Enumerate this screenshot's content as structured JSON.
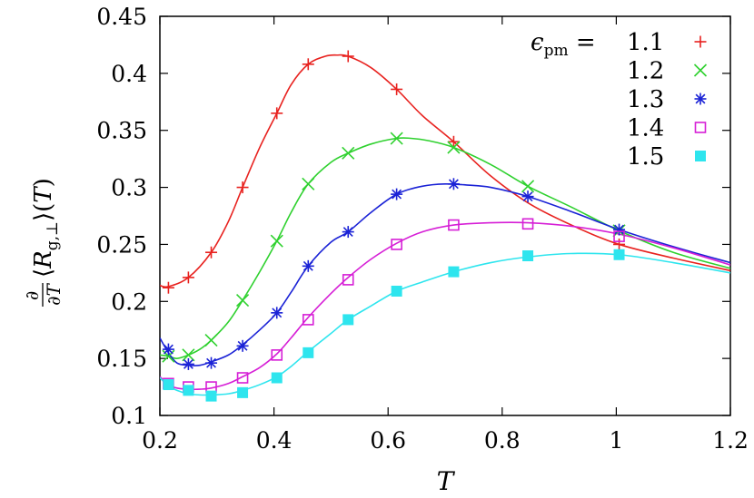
{
  "chart_data": {
    "type": "line",
    "xlabel": "T",
    "ylabel": "∂/∂T ⟨R_g,⊥⟩(T)",
    "xlim": [
      0.2,
      1.2
    ],
    "ylim": [
      0.1,
      0.45
    ],
    "xticks": [
      "0.2",
      "0.4",
      "0.6",
      "0.8",
      "1",
      "1.2"
    ],
    "yticks": [
      "0.1",
      "0.15",
      "0.2",
      "0.25",
      "0.3",
      "0.35",
      "0.4",
      "0.45"
    ],
    "grid": false,
    "legend_placement": "top-right",
    "legend_title": "ε_pm =",
    "series": [
      {
        "name": "1.1",
        "color": "#e8221f",
        "marker": "plus",
        "x": [
          0.215,
          0.25,
          0.29,
          0.345,
          0.405,
          0.46,
          0.53,
          0.615,
          0.715,
          1.005
        ],
        "y": [
          0.212,
          0.221,
          0.243,
          0.3,
          0.365,
          0.408,
          0.415,
          0.386,
          0.34,
          0.25
        ],
        "curve_x": [
          0.2,
          0.215,
          0.25,
          0.29,
          0.32,
          0.345,
          0.375,
          0.405,
          0.43,
          0.46,
          0.49,
          0.51,
          0.53,
          0.57,
          0.615,
          0.66,
          0.715,
          0.78,
          0.85,
          0.93,
          1.005,
          1.1,
          1.2
        ],
        "curve_y": [
          0.214,
          0.213,
          0.221,
          0.243,
          0.27,
          0.3,
          0.335,
          0.365,
          0.39,
          0.408,
          0.415,
          0.416,
          0.415,
          0.405,
          0.386,
          0.363,
          0.34,
          0.31,
          0.285,
          0.265,
          0.25,
          0.238,
          0.227
        ]
      },
      {
        "name": "1.2",
        "color": "#2fd12f",
        "marker": "cross",
        "x": [
          0.215,
          0.25,
          0.29,
          0.345,
          0.405,
          0.46,
          0.53,
          0.615,
          0.715,
          0.845,
          1.005
        ],
        "y": [
          0.152,
          0.153,
          0.166,
          0.201,
          0.253,
          0.303,
          0.33,
          0.343,
          0.335,
          0.301,
          0.262
        ],
        "curve_x": [
          0.2,
          0.215,
          0.23,
          0.25,
          0.27,
          0.29,
          0.32,
          0.345,
          0.375,
          0.405,
          0.43,
          0.46,
          0.5,
          0.53,
          0.57,
          0.615,
          0.64,
          0.67,
          0.715,
          0.78,
          0.845,
          0.92,
          1.005,
          1.1,
          1.2
        ],
        "curve_y": [
          0.153,
          0.152,
          0.15,
          0.153,
          0.158,
          0.166,
          0.182,
          0.201,
          0.226,
          0.253,
          0.278,
          0.303,
          0.322,
          0.33,
          0.338,
          0.343,
          0.343,
          0.341,
          0.335,
          0.32,
          0.301,
          0.283,
          0.262,
          0.243,
          0.229
        ]
      },
      {
        "name": "1.3",
        "color": "#1b23d6",
        "marker": "asterisk",
        "x": [
          0.215,
          0.25,
          0.29,
          0.345,
          0.405,
          0.46,
          0.53,
          0.615,
          0.715,
          0.845,
          1.005
        ],
        "y": [
          0.158,
          0.145,
          0.146,
          0.161,
          0.19,
          0.231,
          0.261,
          0.294,
          0.303,
          0.292,
          0.263
        ],
        "curve_x": [
          0.2,
          0.215,
          0.23,
          0.25,
          0.27,
          0.29,
          0.32,
          0.345,
          0.375,
          0.405,
          0.43,
          0.46,
          0.5,
          0.53,
          0.57,
          0.615,
          0.66,
          0.7,
          0.74,
          0.78,
          0.845,
          0.92,
          1.005,
          1.1,
          1.2
        ],
        "curve_y": [
          0.168,
          0.155,
          0.146,
          0.144,
          0.144,
          0.147,
          0.153,
          0.162,
          0.175,
          0.19,
          0.208,
          0.231,
          0.252,
          0.261,
          0.278,
          0.294,
          0.301,
          0.303,
          0.302,
          0.3,
          0.292,
          0.279,
          0.263,
          0.248,
          0.234
        ]
      },
      {
        "name": "1.4",
        "color": "#d61fd6",
        "marker": "open-square",
        "x": [
          0.215,
          0.25,
          0.29,
          0.345,
          0.405,
          0.46,
          0.53,
          0.615,
          0.715,
          0.845,
          1.005
        ],
        "y": [
          0.128,
          0.125,
          0.125,
          0.133,
          0.153,
          0.184,
          0.219,
          0.25,
          0.267,
          0.268,
          0.257
        ],
        "curve_x": [
          0.2,
          0.215,
          0.23,
          0.25,
          0.27,
          0.29,
          0.32,
          0.345,
          0.375,
          0.405,
          0.43,
          0.46,
          0.5,
          0.53,
          0.57,
          0.615,
          0.66,
          0.715,
          0.78,
          0.845,
          0.92,
          1.005,
          1.1,
          1.2
        ],
        "curve_y": [
          0.134,
          0.127,
          0.124,
          0.123,
          0.123,
          0.124,
          0.128,
          0.134,
          0.142,
          0.154,
          0.168,
          0.186,
          0.207,
          0.221,
          0.237,
          0.251,
          0.261,
          0.267,
          0.269,
          0.269,
          0.266,
          0.259,
          0.247,
          0.232
        ]
      },
      {
        "name": "1.5",
        "color": "#2ee5ee",
        "marker": "filled-square",
        "x": [
          0.215,
          0.25,
          0.29,
          0.345,
          0.405,
          0.46,
          0.53,
          0.615,
          0.715,
          0.845,
          1.005
        ],
        "y": [
          0.127,
          0.122,
          0.117,
          0.12,
          0.133,
          0.155,
          0.184,
          0.209,
          0.226,
          0.24,
          0.241
        ],
        "curve_x": [
          0.2,
          0.215,
          0.23,
          0.25,
          0.27,
          0.29,
          0.32,
          0.345,
          0.375,
          0.405,
          0.43,
          0.46,
          0.5,
          0.53,
          0.57,
          0.615,
          0.66,
          0.715,
          0.78,
          0.845,
          0.92,
          1.005,
          1.1,
          1.2
        ],
        "curve_y": [
          0.133,
          0.126,
          0.122,
          0.119,
          0.118,
          0.118,
          0.119,
          0.122,
          0.127,
          0.134,
          0.143,
          0.156,
          0.172,
          0.184,
          0.196,
          0.209,
          0.217,
          0.226,
          0.234,
          0.239,
          0.242,
          0.241,
          0.234,
          0.225
        ]
      }
    ]
  }
}
